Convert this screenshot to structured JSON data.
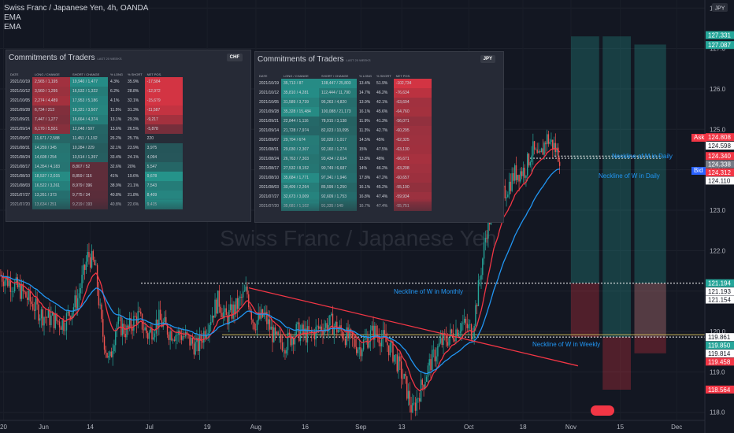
{
  "legend": {
    "title": "Swiss Franc / Japanese Yen, 4h, OANDA",
    "ema1": "EMA",
    "ema2": "EMA"
  },
  "watermark": "Swiss Franc / Japanese Yen",
  "currency_badge": "JPY",
  "cot_title": "Commitments of Traders",
  "cot_subtitle": "LAST 20 WEEKS",
  "cot_headers": [
    "DATE",
    "LONG / CHANGE",
    "SHORT / CHANGE",
    "% LONG",
    "% SHORT",
    "NET POS."
  ],
  "cot_chf": {
    "currency": "CHF",
    "rows": [
      [
        "2021/10/19",
        "2,565 / 1,195",
        "19,940 / 1,477",
        "4.3%",
        "35.9%",
        "-17,584"
      ],
      [
        "2021/10/12",
        "3,560 / 1,295",
        "16,532 / 1,322",
        "6.2%",
        "28.8%",
        "-12,972"
      ],
      [
        "2021/10/05",
        "2,274 / 4,489",
        "17,953 / 5,186",
        "4.1%",
        "32.1%",
        "-15,679"
      ],
      [
        "2021/09/28",
        "6,734 / 213",
        "18,321 / 3,507",
        "11.5%",
        "31.3%",
        "-11,587"
      ],
      [
        "2021/09/21",
        "7,447 / 1,277",
        "16,664 / 4,374",
        "13.1%",
        "29.3%",
        "-9,217"
      ],
      [
        "2021/09/14",
        "6,170 / 5,501",
        "12,048 / 597",
        "13.6%",
        "26.5%",
        "-5,878"
      ],
      [
        "2021/09/07",
        "11,671 / 2,588",
        "11,451 / 1,192",
        "26.2%",
        "25.7%",
        "220"
      ],
      [
        "2021/08/31",
        "14,259 / 345",
        "10,284 / 229",
        "32.1%",
        "23.9%",
        "3,975"
      ],
      [
        "2021/08/24",
        "14,608 / 254",
        "10,514 / 1,397",
        "33.4%",
        "24.1%",
        "4,094"
      ],
      [
        "2021/08/17",
        "14,354 / 4,183",
        "8,807 / 52",
        "32.6%",
        "20%",
        "5,547"
      ],
      [
        "2021/08/10",
        "18,537 / 2,015",
        "8,859 / 116",
        "41%",
        "19.6%",
        "9,678"
      ],
      [
        "2021/08/03",
        "16,522 / 3,261",
        "8,979 / 396",
        "38.9%",
        "21.1%",
        "7,543"
      ],
      [
        "2021/07/27",
        "13,261 / 373",
        "9,775 / 34",
        "40.8%",
        "21.8%",
        "8,409"
      ],
      [
        "2021/07/20",
        "13,634 / 251",
        "9,219 / 193",
        "40.8%",
        "22.6%",
        "9,415"
      ]
    ]
  },
  "cot_jpy": {
    "currency": "JPY",
    "rows": [
      [
        "2021/10/19",
        "35,713 / 87",
        "138,447 / 25,803",
        "13.4%",
        "51.9%",
        "-102,734"
      ],
      [
        "2021/10/12",
        "35,810 / 4,281",
        "112,444 / 11,790",
        "14.7%",
        "46.2%",
        "-76,634"
      ],
      [
        "2021/10/05",
        "31,589 / 3,739",
        "95,263 / 4,820",
        "13.9%",
        "42.1%",
        "-63,694"
      ],
      [
        "2021/09/28",
        "35,328 / 15,484",
        "100,088 / 21,173",
        "16.1%",
        "45.6%",
        "-64,760"
      ],
      [
        "2021/09/21",
        "22,844 / 1,116",
        "78,915 / 3,138",
        "11.9%",
        "41.3%",
        "-56,071"
      ],
      [
        "2021/09/14",
        "21,728 / 7,974",
        "82,023 / 10,095",
        "11.3%",
        "42.7%",
        "-60,295"
      ],
      [
        "2021/09/07",
        "29,704 / 674",
        "92,029 / 1,017",
        "14.5%",
        "45%",
        "-62,325"
      ],
      [
        "2021/08/31",
        "29,030 / 2,307",
        "92,160 / 1,274",
        "15%",
        "47.5%",
        "-63,130"
      ],
      [
        "2021/08/24",
        "26,763 / 7,303",
        "93,434 / 2,634",
        "13.8%",
        "48%",
        "-66,671"
      ],
      [
        "2021/08/17",
        "27,532 / 8,152",
        "90,749 / 6,687",
        "14%",
        "46.2%",
        "-63,208"
      ],
      [
        "2021/08/10",
        "35,684 / 1,771",
        "97,341 / 1,946",
        "17.8%",
        "47.2%",
        "-60,657"
      ],
      [
        "2021/08/03",
        "30,409 / 2,264",
        "85,599 / 1,250",
        "16.1%",
        "45.2%",
        "-55,190"
      ],
      [
        "2021/07/27",
        "32,673 / 3,009",
        "92,609 / 1,753",
        "16.8%",
        "47.4%",
        "-59,934"
      ],
      [
        "2021/07/20",
        "35,681 / 1,102",
        "91,335 / 149",
        "16.7%",
        "47.4%",
        "-55,751"
      ]
    ]
  },
  "annotations": {
    "neckline_monthly": "Neckline of W in Monthly",
    "neckline_weekly": "Neckline of W in Weekly",
    "neckline_m_daily": "Neckline of M in Daily",
    "neckline_w_daily": "Neckline of W in Daily"
  },
  "price_tags": {
    "ask_label": "Ask",
    "bid_label": "Bid",
    "ask_value": "124.338",
    "bid_value": "124.285"
  },
  "chart_data": {
    "type": "candlestick",
    "title": "Swiss Franc / Japanese Yen, 4h, OANDA",
    "ylim": [
      117.8,
      128.2
    ],
    "y_ticks": [
      118.0,
      119.0,
      120.0,
      121.0,
      122.0,
      123.0,
      124.0,
      125.0,
      126.0,
      127.0,
      128.0
    ],
    "x_labels": [
      "20",
      "Jun",
      "14",
      "Jul",
      "19",
      "Aug",
      "16",
      "Sep",
      "13",
      "Oct",
      "18",
      "Nov",
      "15",
      "Dec"
    ],
    "price_labels": [
      {
        "value": 127.331,
        "text": "127.331",
        "color": "#26a69a"
      },
      {
        "value": 127.087,
        "text": "127.087",
        "color": "#26a69a"
      },
      {
        "value": 124.808,
        "text": "124.808",
        "color": "#f23645"
      },
      {
        "value": 124.598,
        "text": "124.598",
        "color": "#ffffff"
      },
      {
        "value": 124.34,
        "text": "124.340",
        "color": "#f23645"
      },
      {
        "value": 124.338,
        "text": "124.338",
        "color": "#787b86"
      },
      {
        "value": 124.312,
        "text": "124.312",
        "color": "#f23645"
      },
      {
        "value": 124.11,
        "text": "124.110",
        "color": "#ffffff"
      },
      {
        "value": 121.194,
        "text": "121.194",
        "color": "#26a69a"
      },
      {
        "value": 121.193,
        "text": "121.193",
        "color": "#ffffff"
      },
      {
        "value": 121.154,
        "text": "121.154",
        "color": "#ffffff"
      },
      {
        "value": 119.861,
        "text": "119.861",
        "color": "#ffffff"
      },
      {
        "value": 119.85,
        "text": "119.850",
        "color": "#26a69a"
      },
      {
        "value": 119.814,
        "text": "119.814",
        "color": "#ffffff"
      },
      {
        "value": 119.458,
        "text": "119.458",
        "color": "#f23645"
      },
      {
        "value": 118.564,
        "text": "118.564",
        "color": "#f23645"
      }
    ],
    "price_path": [
      [
        0,
        121.4
      ],
      [
        0.03,
        121.0
      ],
      [
        0.06,
        120.4
      ],
      [
        0.09,
        120.2
      ],
      [
        0.11,
        120.8
      ],
      [
        0.125,
        121.9
      ],
      [
        0.135,
        121.6
      ],
      [
        0.145,
        120.0
      ],
      [
        0.155,
        119.2
      ],
      [
        0.165,
        120.2
      ],
      [
        0.18,
        120.0
      ],
      [
        0.195,
        120.4
      ],
      [
        0.21,
        119.9
      ],
      [
        0.225,
        120.3
      ],
      [
        0.24,
        120.0
      ],
      [
        0.26,
        119.9
      ],
      [
        0.28,
        119.6
      ],
      [
        0.295,
        120.2
      ],
      [
        0.31,
        120.8
      ],
      [
        0.32,
        120.3
      ],
      [
        0.335,
        120.6
      ],
      [
        0.35,
        121.0
      ],
      [
        0.36,
        120.2
      ],
      [
        0.375,
        120.4
      ],
      [
        0.39,
        119.8
      ],
      [
        0.405,
        119.7
      ],
      [
        0.42,
        120.0
      ],
      [
        0.44,
        119.9
      ],
      [
        0.455,
        120.1
      ],
      [
        0.47,
        120.2
      ],
      [
        0.49,
        119.9
      ],
      [
        0.51,
        119.6
      ],
      [
        0.53,
        120.0
      ],
      [
        0.545,
        119.8
      ],
      [
        0.56,
        119.4
      ],
      [
        0.575,
        118.7
      ],
      [
        0.585,
        118.0
      ],
      [
        0.595,
        118.5
      ],
      [
        0.61,
        119.2
      ],
      [
        0.625,
        119.7
      ],
      [
        0.64,
        119.9
      ],
      [
        0.655,
        120.2
      ],
      [
        0.67,
        120.0
      ],
      [
        0.68,
        121.2
      ],
      [
        0.69,
        122.5
      ],
      [
        0.7,
        123.1
      ],
      [
        0.715,
        123.4
      ],
      [
        0.73,
        123.9
      ],
      [
        0.745,
        124.0
      ],
      [
        0.755,
        124.5
      ],
      [
        0.765,
        124.2
      ],
      [
        0.775,
        124.8
      ],
      [
        0.785,
        124.6
      ],
      [
        0.795,
        124.3
      ]
    ],
    "trendlines": [
      {
        "x1": 0.353,
        "y1": 121.08,
        "x2": 0.82,
        "y2": 119.15,
        "color": "#f23645"
      }
    ],
    "levels": [
      {
        "value": 121.194,
        "from": 0.2,
        "to": 1.0
      },
      {
        "value": 119.861,
        "from": 0.315,
        "to": 1.0
      },
      {
        "value": 124.338,
        "from": 0.787,
        "to": 0.94
      },
      {
        "value": 124.285,
        "from": 0.752,
        "to": 0.94
      }
    ],
    "projection_boxes": [
      {
        "x1": 0.81,
        "x2": 0.85,
        "y1": 127.3,
        "y2": 121.2,
        "color": "#26a69a"
      },
      {
        "x1": 0.855,
        "x2": 0.895,
        "y1": 127.3,
        "y2": 119.86,
        "color": "#26a69a"
      },
      {
        "x1": 0.9,
        "x2": 0.945,
        "y1": 127.1,
        "y2": 119.86,
        "color": "#26a69a"
      },
      {
        "x1": 0.81,
        "x2": 0.85,
        "y1": 121.19,
        "y2": 119.86,
        "color": "#f23645"
      },
      {
        "x1": 0.855,
        "x2": 0.895,
        "y1": 119.86,
        "y2": 118.56,
        "color": "#f23645"
      },
      {
        "x1": 0.9,
        "x2": 0.945,
        "y1": 121.19,
        "y2": 119.46,
        "color": "#f23645"
      }
    ]
  }
}
